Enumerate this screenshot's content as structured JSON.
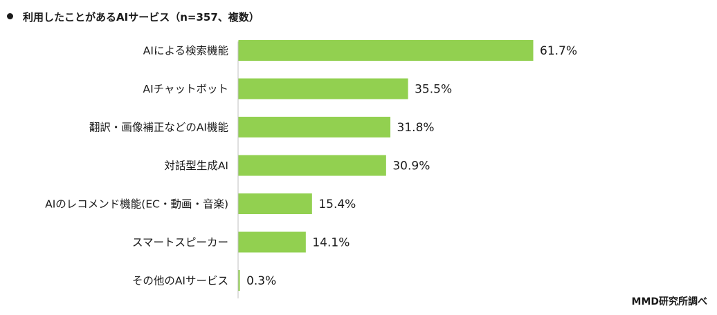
{
  "title": "利用したことがあるAIサービス（n=357、複数）",
  "source": "MMD研究所調べ",
  "colors": {
    "bar": "#92d050",
    "axis": "#bfbfbf"
  },
  "chart_data": {
    "type": "bar",
    "orientation": "horizontal",
    "title": "利用したことがあるAIサービス（n=357、複数）",
    "categories": [
      "AIによる検索機能",
      "AIチャットボット",
      "翻訳・画像補正などのAI機能",
      "対話型生成AI",
      "AIのレコメンド機能(EC・動画・音楽)",
      "スマートスピーカー",
      "その他のAIサービス"
    ],
    "values": [
      61.7,
      35.5,
      31.8,
      30.9,
      15.4,
      14.1,
      0.3
    ],
    "value_labels": [
      "61.7%",
      "35.5%",
      "31.8%",
      "30.9%",
      "15.4%",
      "14.1%",
      "0.3%"
    ],
    "unit": "%",
    "xlim": [
      0,
      100
    ],
    "grid": false,
    "legend": "none"
  }
}
